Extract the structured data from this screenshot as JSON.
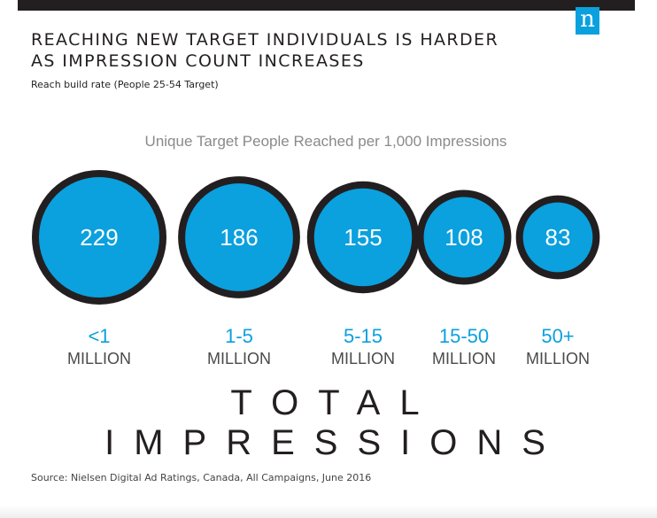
{
  "logo": {
    "letter": "n",
    "color": "#0ba0de"
  },
  "header": {
    "title_line1": "REACHING NEW TARGET INDIVIDUALS IS HARDER",
    "title_line2": "AS IMPRESSION COUNT INCREASES",
    "subtitle": "Reach build rate (People 25-54 Target)"
  },
  "footer": {
    "source": "Source: Nielsen Digital Ad Ratings, Canada, All Campaigns, June 2016"
  },
  "colors": {
    "bubble_fill": "#0ba0de",
    "bubble_border": "#231f20",
    "accent_text": "#0ba0de",
    "dark_text": "#231f20"
  },
  "chart_data": {
    "type": "bubble",
    "title": "Unique Target People Reached per 1,000 Impressions",
    "xlabel": "TOTAL IMPRESSIONS",
    "ylabel": "",
    "categories": [
      {
        "range": "<1",
        "unit": "MILLION"
      },
      {
        "range": "1-5",
        "unit": "MILLION"
      },
      {
        "range": "5-15",
        "unit": "MILLION"
      },
      {
        "range": "15-50",
        "unit": "MILLION"
      },
      {
        "range": "50+",
        "unit": "MILLION"
      }
    ],
    "values": [
      229,
      186,
      155,
      108,
      83
    ]
  }
}
